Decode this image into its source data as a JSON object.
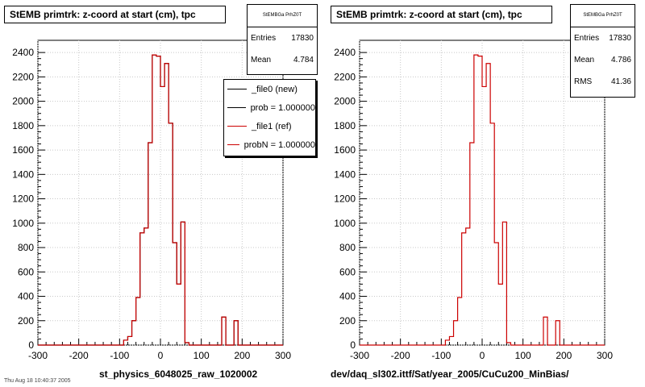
{
  "chart_data": [
    {
      "type": "histogram",
      "title": "StEMB primtrk: z-coord at start (cm), tpc",
      "xlabel": "st_physics_6048025_raw_1020002",
      "ylabel": "",
      "xlim": [
        -300,
        300
      ],
      "ylim": [
        0,
        2500
      ],
      "xticks": [
        -300,
        -200,
        -100,
        0,
        100,
        200,
        300
      ],
      "yticks": [
        0,
        200,
        400,
        600,
        800,
        1000,
        1200,
        1400,
        1600,
        1800,
        2000,
        2200,
        2400
      ],
      "bin_edges": [
        -100,
        -90,
        -80,
        -70,
        -60,
        -50,
        -40,
        -30,
        -20,
        -10,
        0,
        10,
        20,
        30,
        40,
        50,
        60,
        70,
        80,
        90,
        100,
        110,
        120,
        130,
        140,
        150,
        160,
        170,
        180,
        190,
        200
      ],
      "series": [
        {
          "name": "_file0 (new)",
          "values": [
            0,
            40,
            70,
            200,
            390,
            920,
            960,
            1660,
            2380,
            2370,
            2120,
            2310,
            1820,
            840,
            500,
            1010,
            20,
            0,
            0,
            0,
            0,
            0,
            0,
            0,
            0,
            230,
            0,
            0,
            200,
            0
          ]
        },
        {
          "name": "_file1 (ref)",
          "values": [
            0,
            40,
            70,
            200,
            390,
            920,
            960,
            1660,
            2380,
            2370,
            2120,
            2310,
            1820,
            840,
            500,
            1010,
            20,
            0,
            0,
            0,
            0,
            0,
            0,
            0,
            0,
            230,
            0,
            0,
            200,
            0
          ]
        }
      ],
      "stats": {
        "header": "StEMBGa PrhZ0T",
        "entries_label": "Entries",
        "entries": "17830",
        "mean_label": "Mean",
        "mean": "4.784"
      },
      "legend_entries": [
        {
          "label": "_file0 (new)",
          "color": "#000000"
        },
        {
          "label": "prob = 1.000000",
          "color": "#000000"
        },
        {
          "label": "_file1 (ref)",
          "color": "#cc0000"
        },
        {
          "label": "probN = 1.000000",
          "color": "#cc0000"
        }
      ],
      "grid": true
    },
    {
      "type": "histogram",
      "title": "StEMB primtrk: z-coord at start (cm), tpc",
      "xlabel": "dev/daq_sl302.ittf/Sat/year_2005/CuCu200_MinBias/",
      "ylabel": "",
      "xlim": [
        -300,
        300
      ],
      "ylim": [
        0,
        2500
      ],
      "xticks": [
        -300,
        -200,
        -100,
        0,
        100,
        200,
        300
      ],
      "yticks": [
        0,
        200,
        400,
        600,
        800,
        1000,
        1200,
        1400,
        1600,
        1800,
        2000,
        2200,
        2400
      ],
      "bin_edges": [
        -100,
        -90,
        -80,
        -70,
        -60,
        -50,
        -40,
        -30,
        -20,
        -10,
        0,
        10,
        20,
        30,
        40,
        50,
        60,
        70,
        80,
        90,
        100,
        110,
        120,
        130,
        140,
        150,
        160,
        170,
        180,
        190,
        200
      ],
      "series": [
        {
          "name": "_file1 (ref)",
          "values": [
            0,
            40,
            70,
            200,
            390,
            920,
            960,
            1660,
            2380,
            2370,
            2120,
            2310,
            1820,
            840,
            500,
            1010,
            20,
            0,
            0,
            0,
            0,
            0,
            0,
            0,
            0,
            230,
            0,
            0,
            200,
            0
          ]
        }
      ],
      "stats": {
        "header": "StEMBGa PrhZ0T",
        "entries_label": "Entries",
        "entries": "17830",
        "mean_label": "Mean",
        "mean": "4.786",
        "rms_label": "RMS",
        "rms": "41.36"
      },
      "grid": true
    }
  ],
  "footer_small_text": "Thu Aug 18 10:40:37 2005",
  "colors": {
    "series_new": "#000000",
    "series_ref": "#cc0000",
    "grid": "#c8c8c8",
    "axis": "#000000"
  }
}
